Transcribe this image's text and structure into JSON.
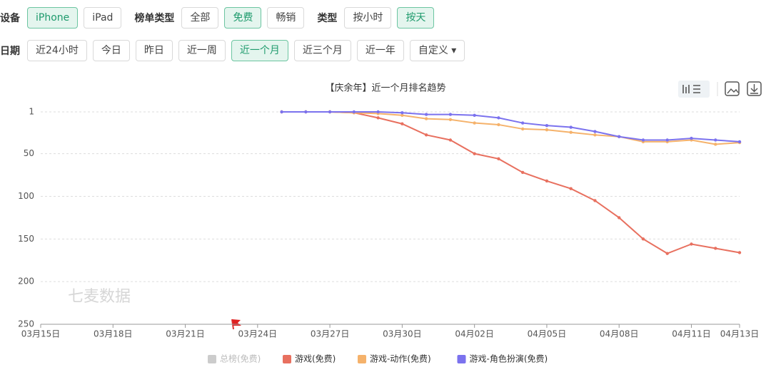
{
  "filters": {
    "rows": [
      {
        "groups": [
          {
            "label": "设备",
            "options": [
              "iPhone",
              "iPad"
            ],
            "selected": 0
          },
          {
            "label": "榜单类型",
            "options": [
              "全部",
              "免费",
              "畅销"
            ],
            "selected": 1
          },
          {
            "label": "类型",
            "options": [
              "按小时",
              "按天"
            ],
            "selected": 1
          }
        ]
      },
      {
        "groups": [
          {
            "label": "日期",
            "options": [
              "近24小时",
              "今日",
              "昨日",
              "近一周",
              "近一个月",
              "近三个月",
              "近一年",
              "自定义 ▾"
            ],
            "selected": 4
          }
        ]
      }
    ]
  },
  "chart_data": {
    "type": "line",
    "title": "【庆余年】近一个月排名趋势",
    "watermark": "七麦数据",
    "categories": [
      "03月15日",
      null,
      null,
      "03月18日",
      null,
      null,
      "03月21日",
      null,
      null,
      "03月24日",
      null,
      null,
      "03月27日",
      null,
      null,
      "03月30日",
      null,
      null,
      "04月02日",
      null,
      null,
      "04月05日",
      null,
      null,
      "04月08日",
      null,
      null,
      "04月11日",
      null,
      "04月13日"
    ],
    "series": [
      {
        "name": "总榜(免费)",
        "color": "#cccccc",
        "visible": false,
        "values": [
          null,
          null,
          null,
          null,
          null,
          null,
          null,
          null,
          null,
          null,
          null,
          null,
          null,
          null,
          null,
          null,
          null,
          null,
          null,
          null,
          null,
          null,
          null,
          null,
          null,
          null,
          null,
          null,
          null,
          null
        ]
      },
      {
        "name": "游戏(免费)",
        "color": "#e8705f",
        "visible": true,
        "values": [
          null,
          null,
          null,
          null,
          null,
          null,
          null,
          null,
          null,
          null,
          1,
          1,
          1,
          2,
          8,
          15,
          28,
          34,
          50,
          56,
          72,
          82,
          91,
          105,
          125,
          150,
          167,
          156,
          161,
          166
        ]
      },
      {
        "name": "游戏-动作(免费)",
        "color": "#f5b26b",
        "visible": true,
        "values": [
          null,
          null,
          null,
          null,
          null,
          null,
          null,
          null,
          null,
          null,
          1,
          1,
          1,
          2,
          3,
          5,
          9,
          10,
          14,
          16,
          21,
          22,
          25,
          28,
          30,
          36,
          36,
          34,
          39,
          37
        ]
      },
      {
        "name": "游戏-角色扮演(免费)",
        "color": "#7b72ee",
        "visible": true,
        "values": [
          null,
          null,
          null,
          null,
          null,
          null,
          null,
          null,
          null,
          null,
          1,
          1,
          1,
          1,
          1,
          2,
          4,
          4,
          5,
          8,
          14,
          17,
          19,
          24,
          30,
          34,
          34,
          32,
          34,
          36
        ]
      }
    ],
    "ylim": [
      1,
      250
    ],
    "yticks": [
      1,
      50,
      100,
      150,
      200,
      250
    ],
    "inverted": true,
    "grid": true
  }
}
